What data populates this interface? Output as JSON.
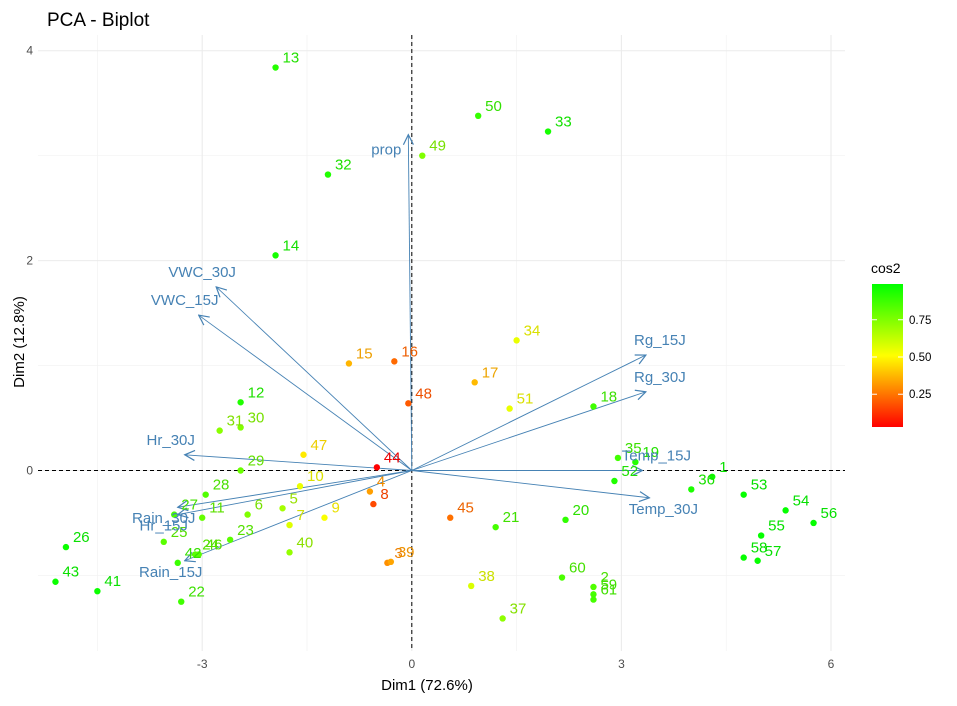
{
  "chart_data": {
    "type": "scatter",
    "title": "PCA - Biplot",
    "xlabel": "Dim1 (72.6%)",
    "ylabel": "Dim2 (12.8%)",
    "xlim": [
      -5.35,
      6.2
    ],
    "ylim": [
      -1.72,
      4.15
    ],
    "x_ticks": [
      -3,
      0,
      3,
      6
    ],
    "y_ticks": [
      0,
      2,
      4
    ],
    "grid": true,
    "legend": {
      "title": "cos2",
      "position": "right",
      "ticks": [
        0.25,
        0.5,
        0.75
      ],
      "range": [
        0.03,
        0.99
      ]
    },
    "colors": {
      "low": "#ff0000",
      "mid": "#ffff00",
      "high": "#00ff00",
      "variables": "#4682b4"
    },
    "individuals": [
      {
        "label": "1",
        "x": 4.3,
        "y": -0.06,
        "cos2": 0.97
      },
      {
        "label": "2",
        "x": 2.6,
        "y": -1.11,
        "cos2": 0.84
      },
      {
        "label": "3",
        "x": -0.35,
        "y": -0.88,
        "cos2": 0.3
      },
      {
        "label": "4",
        "x": -0.6,
        "y": -0.2,
        "cos2": 0.33
      },
      {
        "label": "5",
        "x": -1.85,
        "y": -0.36,
        "cos2": 0.68
      },
      {
        "label": "6",
        "x": -2.35,
        "y": -0.42,
        "cos2": 0.75
      },
      {
        "label": "7",
        "x": -1.75,
        "y": -0.52,
        "cos2": 0.57
      },
      {
        "label": "8",
        "x": -0.55,
        "y": -0.32,
        "cos2": 0.17
      },
      {
        "label": "9",
        "x": -1.25,
        "y": -0.45,
        "cos2": 0.52
      },
      {
        "label": "10",
        "x": -1.6,
        "y": -0.15,
        "cos2": 0.55
      },
      {
        "label": "11",
        "x": -3,
        "y": -0.45,
        "cos2": 0.8
      },
      {
        "label": "12",
        "x": -2.45,
        "y": 0.65,
        "cos2": 0.93
      },
      {
        "label": "13",
        "x": -1.95,
        "y": 3.84,
        "cos2": 0.92
      },
      {
        "label": "14",
        "x": -1.95,
        "y": 2.05,
        "cos2": 0.95
      },
      {
        "label": "15",
        "x": -0.9,
        "y": 1.02,
        "cos2": 0.37
      },
      {
        "label": "16",
        "x": -0.25,
        "y": 1.04,
        "cos2": 0.23
      },
      {
        "label": "17",
        "x": 0.9,
        "y": 0.84,
        "cos2": 0.38
      },
      {
        "label": "18",
        "x": 2.6,
        "y": 0.61,
        "cos2": 0.87
      },
      {
        "label": "19",
        "x": 3.2,
        "y": 0.08,
        "cos2": 0.92
      },
      {
        "label": "20",
        "x": 2.2,
        "y": -0.47,
        "cos2": 0.9
      },
      {
        "label": "21",
        "x": 1.2,
        "y": -0.54,
        "cos2": 0.86
      },
      {
        "label": "22",
        "x": -3.3,
        "y": -1.25,
        "cos2": 0.87
      },
      {
        "label": "23",
        "x": -2.6,
        "y": -0.66,
        "cos2": 0.82
      },
      {
        "label": "24",
        "x": -3.1,
        "y": -0.8,
        "cos2": 0.82
      },
      {
        "label": "25",
        "x": -3.55,
        "y": -0.68,
        "cos2": 0.82
      },
      {
        "label": "26",
        "x": -4.95,
        "y": -0.73,
        "cos2": 0.97
      },
      {
        "label": "27",
        "x": -3.4,
        "y": -0.42,
        "cos2": 0.85
      },
      {
        "label": "28",
        "x": -2.95,
        "y": -0.23,
        "cos2": 0.84
      },
      {
        "label": "29",
        "x": -2.45,
        "y": 0,
        "cos2": 0.79
      },
      {
        "label": "30",
        "x": -2.45,
        "y": 0.41,
        "cos2": 0.75
      },
      {
        "label": "31",
        "x": -2.75,
        "y": 0.38,
        "cos2": 0.73
      },
      {
        "label": "32",
        "x": -1.2,
        "y": 2.82,
        "cos2": 0.93
      },
      {
        "label": "33",
        "x": 1.95,
        "y": 3.23,
        "cos2": 0.95
      },
      {
        "label": "34",
        "x": 1.5,
        "y": 1.24,
        "cos2": 0.55
      },
      {
        "label": "35",
        "x": 2.95,
        "y": 0.12,
        "cos2": 0.87
      },
      {
        "label": "36",
        "x": 4,
        "y": -0.18,
        "cos2": 0.94
      },
      {
        "label": "37",
        "x": 1.3,
        "y": -1.41,
        "cos2": 0.72
      },
      {
        "label": "38",
        "x": 0.85,
        "y": -1.1,
        "cos2": 0.58
      },
      {
        "label": "39",
        "x": -0.3,
        "y": -0.87,
        "cos2": 0.34
      },
      {
        "label": "40",
        "x": -1.75,
        "y": -0.78,
        "cos2": 0.71
      },
      {
        "label": "41",
        "x": -4.5,
        "y": -1.15,
        "cos2": 0.97
      },
      {
        "label": "42",
        "x": -3.35,
        "y": -0.88,
        "cos2": 0.88
      },
      {
        "label": "43",
        "x": -5.1,
        "y": -1.06,
        "cos2": 0.97
      },
      {
        "label": "44",
        "x": -0.5,
        "y": 0.03,
        "cos2": 0.03
      },
      {
        "label": "45",
        "x": 0.55,
        "y": -0.45,
        "cos2": 0.24
      },
      {
        "label": "46",
        "x": -3.05,
        "y": -0.8,
        "cos2": 0.82
      },
      {
        "label": "47",
        "x": -1.55,
        "y": 0.15,
        "cos2": 0.47
      },
      {
        "label": "48",
        "x": -0.05,
        "y": 0.64,
        "cos2": 0.2
      },
      {
        "label": "49",
        "x": 0.15,
        "y": 3,
        "cos2": 0.75
      },
      {
        "label": "50",
        "x": 0.95,
        "y": 3.38,
        "cos2": 0.89
      },
      {
        "label": "51",
        "x": 1.4,
        "y": 0.59,
        "cos2": 0.55
      },
      {
        "label": "52",
        "x": 2.9,
        "y": -0.1,
        "cos2": 0.93
      },
      {
        "label": "53",
        "x": 4.75,
        "y": -0.23,
        "cos2": 0.98
      },
      {
        "label": "54",
        "x": 5.35,
        "y": -0.38,
        "cos2": 0.98
      },
      {
        "label": "55",
        "x": 5,
        "y": -0.62,
        "cos2": 0.98
      },
      {
        "label": "56",
        "x": 5.75,
        "y": -0.5,
        "cos2": 0.98
      },
      {
        "label": "57",
        "x": 4.95,
        "y": -0.86,
        "cos2": 0.98
      },
      {
        "label": "58",
        "x": 4.75,
        "y": -0.83,
        "cos2": 0.98
      },
      {
        "label": "59",
        "x": 2.6,
        "y": -1.18,
        "cos2": 0.86
      },
      {
        "label": "60",
        "x": 2.15,
        "y": -1.02,
        "cos2": 0.85
      },
      {
        "label": "61",
        "x": 2.6,
        "y": -1.23,
        "cos2": 0.86
      }
    ],
    "variables": [
      {
        "name": "prop",
        "x": -0.05,
        "y": 3.2
      },
      {
        "name": "VWC_30J",
        "x": -2.8,
        "y": 1.75
      },
      {
        "name": "VWC_15J",
        "x": -3.05,
        "y": 1.48
      },
      {
        "name": "Rg_15J",
        "x": 3.35,
        "y": 1.1
      },
      {
        "name": "Rg_30J",
        "x": 3.35,
        "y": 0.75
      },
      {
        "name": "Temp_15J",
        "x": 3.3,
        "y": 0
      },
      {
        "name": "Temp_30J",
        "x": 3.4,
        "y": -0.26
      },
      {
        "name": "Hr_30J",
        "x": -3.25,
        "y": 0.15
      },
      {
        "name": "Rain_30J",
        "x": -3.35,
        "y": -0.35
      },
      {
        "name": "Hr_15J",
        "x": -3.35,
        "y": -0.42
      },
      {
        "name": "Rain_15J",
        "x": -3.25,
        "y": -0.86
      }
    ]
  }
}
